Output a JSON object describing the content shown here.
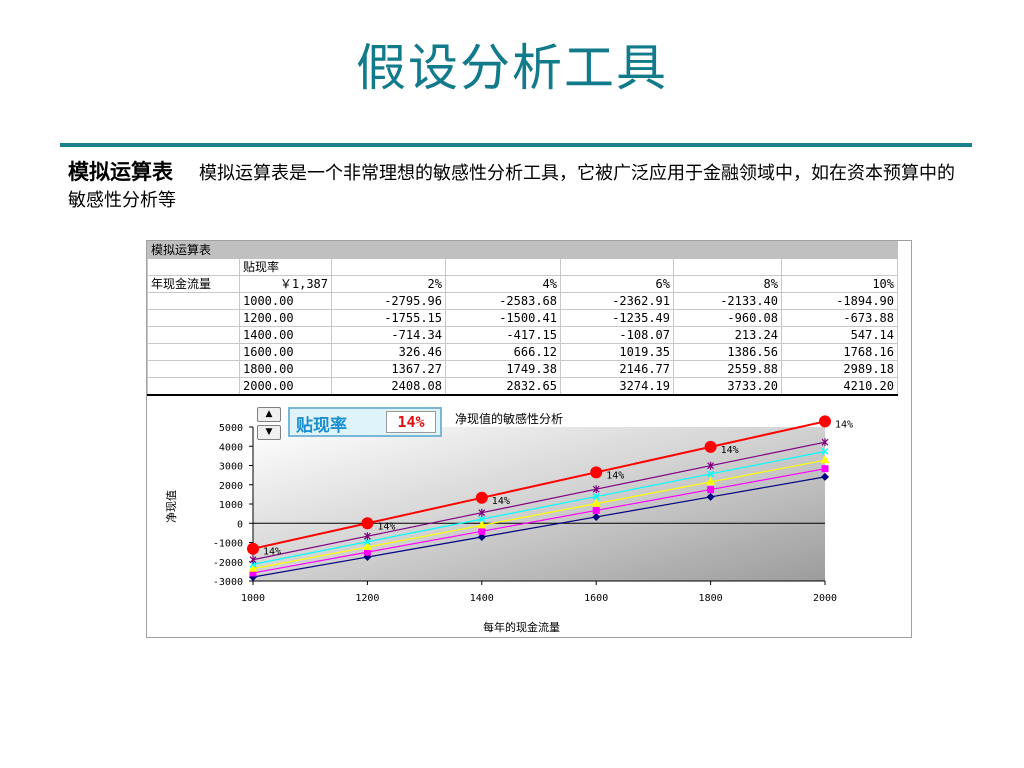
{
  "slide": {
    "title": "假设分析工具",
    "term": "模拟运算表",
    "description": "模拟运算表是一个非常理想的敏感性分析工具，它被广泛应用于金融领域中，如在资本预算中的敏感性分析等"
  },
  "table": {
    "title": "模拟运算表",
    "rate_label": "贴现率",
    "row_label": "年现金流量",
    "corner_value": "￥1,387",
    "rate_headers": [
      "2%",
      "4%",
      "6%",
      "8%",
      "10%"
    ],
    "rows": [
      {
        "cf": "1000.00",
        "vals": [
          "-2795.96",
          "-2583.68",
          "-2362.91",
          "-2133.40",
          "-1894.90"
        ]
      },
      {
        "cf": "1200.00",
        "vals": [
          "-1755.15",
          "-1500.41",
          "-1235.49",
          "-960.08",
          "-673.88"
        ]
      },
      {
        "cf": "1400.00",
        "vals": [
          "-714.34",
          "-417.15",
          "-108.07",
          "213.24",
          "547.14"
        ]
      },
      {
        "cf": "1600.00",
        "vals": [
          "326.46",
          "666.12",
          "1019.35",
          "1386.56",
          "1768.16"
        ]
      },
      {
        "cf": "1800.00",
        "vals": [
          "1367.27",
          "1749.38",
          "2146.77",
          "2559.88",
          "2989.18"
        ]
      },
      {
        "cf": "2000.00",
        "vals": [
          "2408.08",
          "2832.65",
          "3274.19",
          "3733.20",
          "4210.20"
        ]
      }
    ]
  },
  "widget": {
    "label": "贴现率",
    "value": "14%",
    "up_glyph": "▲",
    "down_glyph": "▼"
  },
  "chart_data": {
    "type": "line",
    "title": "净现值的敏感性分析",
    "xlabel": "每年的现金流量",
    "ylabel": "净现值",
    "x": [
      1000,
      1200,
      1400,
      1600,
      1800,
      2000
    ],
    "xlim": [
      1000,
      2000
    ],
    "ylim": [
      -3000,
      5000
    ],
    "xticks": [
      1000,
      1200,
      1400,
      1600,
      1800,
      2000
    ],
    "yticks": [
      -3000,
      -2000,
      -1000,
      0,
      1000,
      2000,
      3000,
      4000,
      5000
    ],
    "series": [
      {
        "color": "#000080",
        "marker": "diamond",
        "values": [
          -2795.96,
          -1755.15,
          -714.34,
          326.46,
          1367.27,
          2408.08
        ]
      },
      {
        "color": "#ff00ff",
        "marker": "square",
        "values": [
          -2583.68,
          -1500.41,
          -417.15,
          666.12,
          1749.38,
          2832.65
        ]
      },
      {
        "color": "#ffff00",
        "marker": "triangle",
        "values": [
          -2362.91,
          -1235.49,
          -108.07,
          1019.35,
          2146.77,
          3274.19
        ]
      },
      {
        "color": "#00ffff",
        "marker": "x",
        "values": [
          -2133.4,
          -960.08,
          213.24,
          1386.56,
          2559.88,
          3733.2
        ]
      },
      {
        "color": "#800080",
        "marker": "star",
        "values": [
          -1894.9,
          -673.88,
          547.14,
          1768.16,
          2989.18,
          4210.2
        ]
      },
      {
        "color": "#ff0000",
        "marker": "circle",
        "label": "14%",
        "values": [
          -1322.5,
          0,
          1322.5,
          2645,
          3967.5,
          5290
        ]
      }
    ],
    "grid": false,
    "legend": "none"
  }
}
